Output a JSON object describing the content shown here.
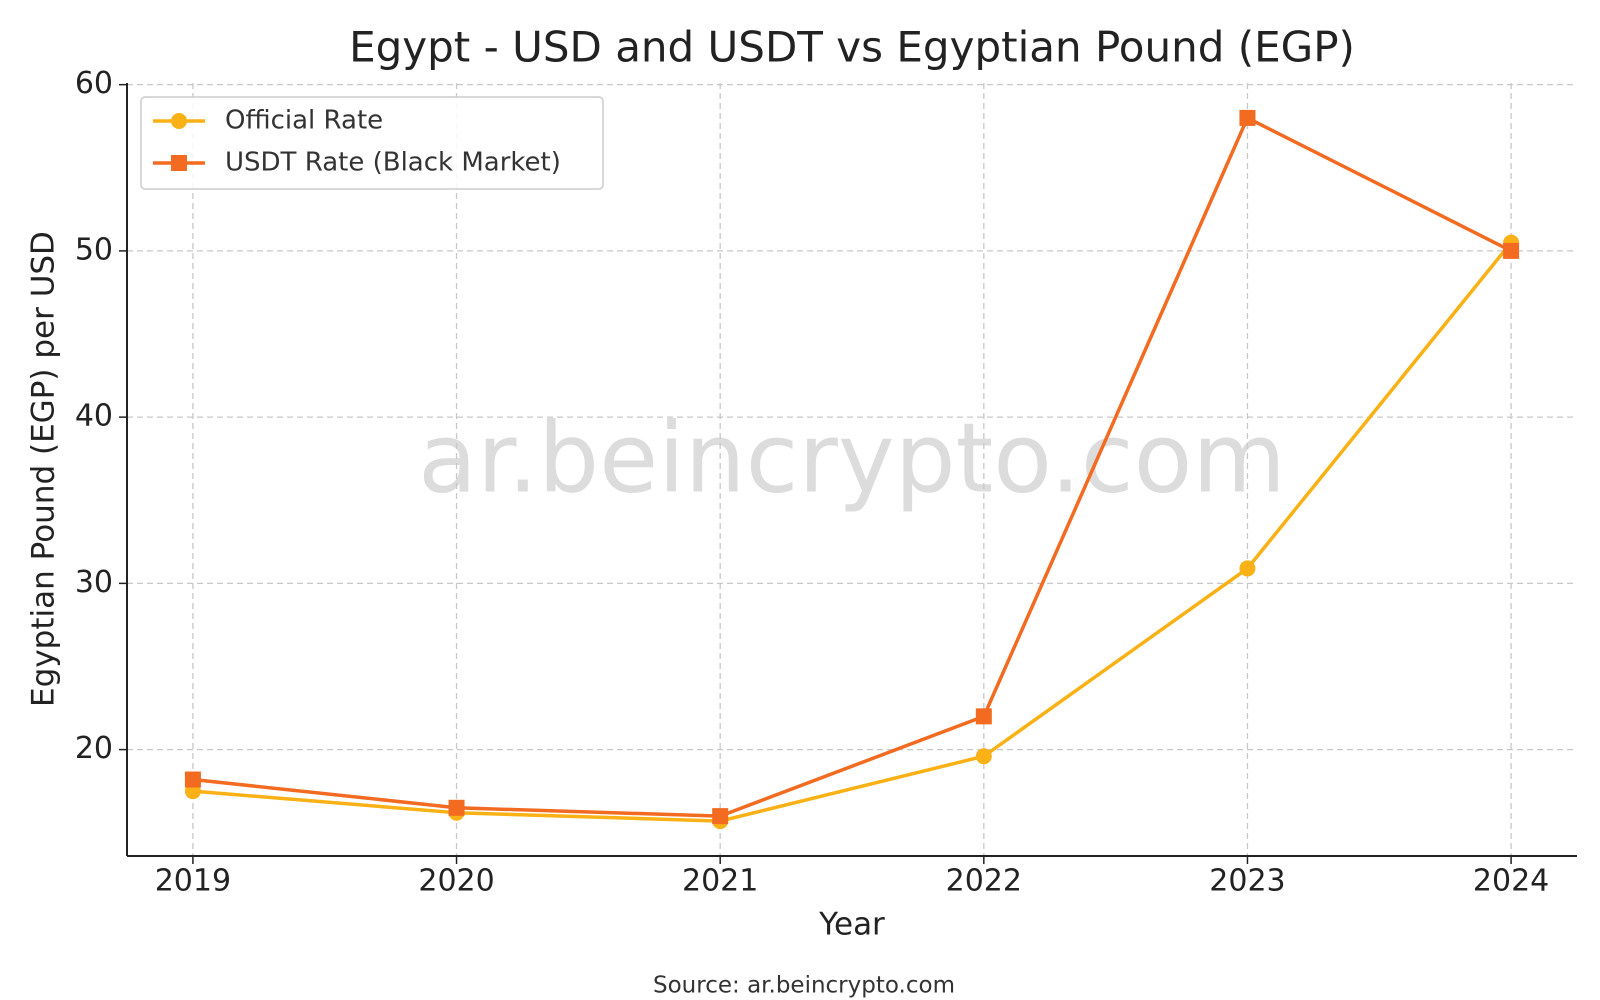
{
  "chart_data": {
    "type": "line",
    "title": "Egypt - USD and USDT vs Egyptian Pound (EGP)",
    "xlabel": "Year",
    "ylabel": "Egyptian Pound (EGP) per USD",
    "watermark": "ar.beincrypto.com",
    "source": "Source: ar.beincrypto.com",
    "x": [
      2019,
      2020,
      2021,
      2022,
      2023,
      2024
    ],
    "series": [
      {
        "name": "Official Rate",
        "color": "#f9b115",
        "marker": "circle",
        "values": [
          17.5,
          16.2,
          15.7,
          19.6,
          30.9,
          50.5
        ]
      },
      {
        "name": "USDT Rate (Black Market)",
        "color": "#f26b21",
        "marker": "square",
        "values": [
          18.2,
          16.5,
          16.0,
          22.0,
          58.0,
          50.0
        ]
      }
    ],
    "xlim": [
      2018.75,
      2024.25
    ],
    "xticks": [
      2019,
      2020,
      2021,
      2022,
      2023,
      2024
    ],
    "ylim": [
      13.6,
      60.1
    ],
    "yticks": [
      20,
      30,
      40,
      50,
      60
    ],
    "grid": true,
    "legend": "upper left"
  }
}
